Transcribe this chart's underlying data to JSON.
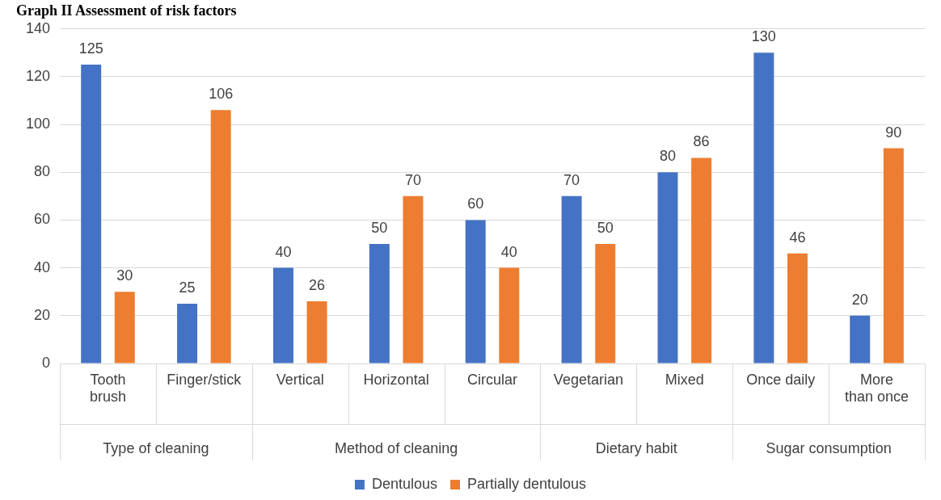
{
  "chart_data": {
    "type": "bar",
    "title": "Graph II Assessment of risk factors",
    "categories": [
      "Tooth brush",
      "Finger/stick",
      "Vertical",
      "Horizontal",
      "Circular",
      "Vegetarian",
      "Mixed",
      "Once daily",
      "More than once"
    ],
    "series": [
      {
        "name": "Dentulous",
        "color": "#4472c4",
        "values": [
          125,
          25,
          40,
          50,
          60,
          70,
          80,
          130,
          20
        ]
      },
      {
        "name": "Partially dentulous",
        "color": "#ed7d31",
        "values": [
          30,
          106,
          26,
          70,
          40,
          50,
          86,
          46,
          90
        ]
      }
    ],
    "annotations": [
      "Type of cleaning",
      "Method of cleaning",
      "Dietary habit",
      "Sugar consumption"
    ],
    "ylim": [
      0,
      140
    ],
    "yticks": [
      0,
      20,
      40,
      60,
      80,
      100,
      120,
      140
    ],
    "grid": "y",
    "legend": "bottom",
    "data_labels": true
  }
}
